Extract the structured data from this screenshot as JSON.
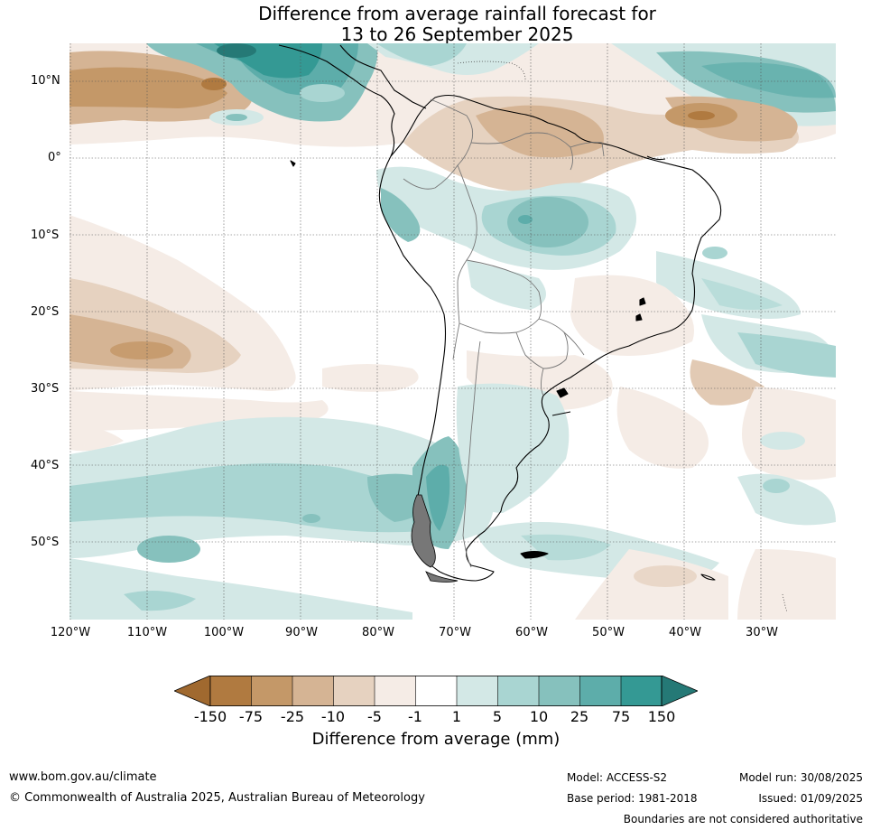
{
  "title": {
    "line1": "Difference from average rainfall forecast for",
    "line2": "13 to 26 September 2025"
  },
  "map": {
    "lat_labels": [
      "10°N",
      "0°",
      "10°S",
      "20°S",
      "30°S",
      "40°S",
      "50°S"
    ],
    "lon_labels": [
      "120°W",
      "110°W",
      "100°W",
      "90°W",
      "80°W",
      "70°W",
      "60°W",
      "50°W",
      "40°W",
      "30°W"
    ],
    "colors": {
      "dry_150": "#a0692f",
      "dry_75": "#b07a40",
      "dry_25": "#c49868",
      "dry_10": "#d5b494",
      "dry_5": "#e6d2c0",
      "dry_1": "#f5ece6",
      "neutral": "#ffffff",
      "wet_1": "#d3e8e6",
      "wet_5": "#a9d5d2",
      "wet_10": "#86c1bd",
      "wet_25": "#5dadaa",
      "wet_75": "#349994",
      "wet_150": "#257976"
    }
  },
  "colorbar": {
    "ticks": [
      "-150",
      "-75",
      "-25",
      "-10",
      "-5",
      "-1",
      "1",
      "5",
      "10",
      "25",
      "75",
      "150"
    ],
    "label": "Difference from average (mm)"
  },
  "footer": {
    "website": "www.bom.gov.au/climate",
    "copyright": "© Commonwealth of Australia 2025, Australian Bureau of Meteorology",
    "model": "Model: ACCESS-S2",
    "base_period": "Base period: 1981-2018",
    "model_run": "Model run: 30/08/2025",
    "issued": "Issued: 01/09/2025",
    "disclaimer": "Boundaries are not considered authoritative"
  }
}
